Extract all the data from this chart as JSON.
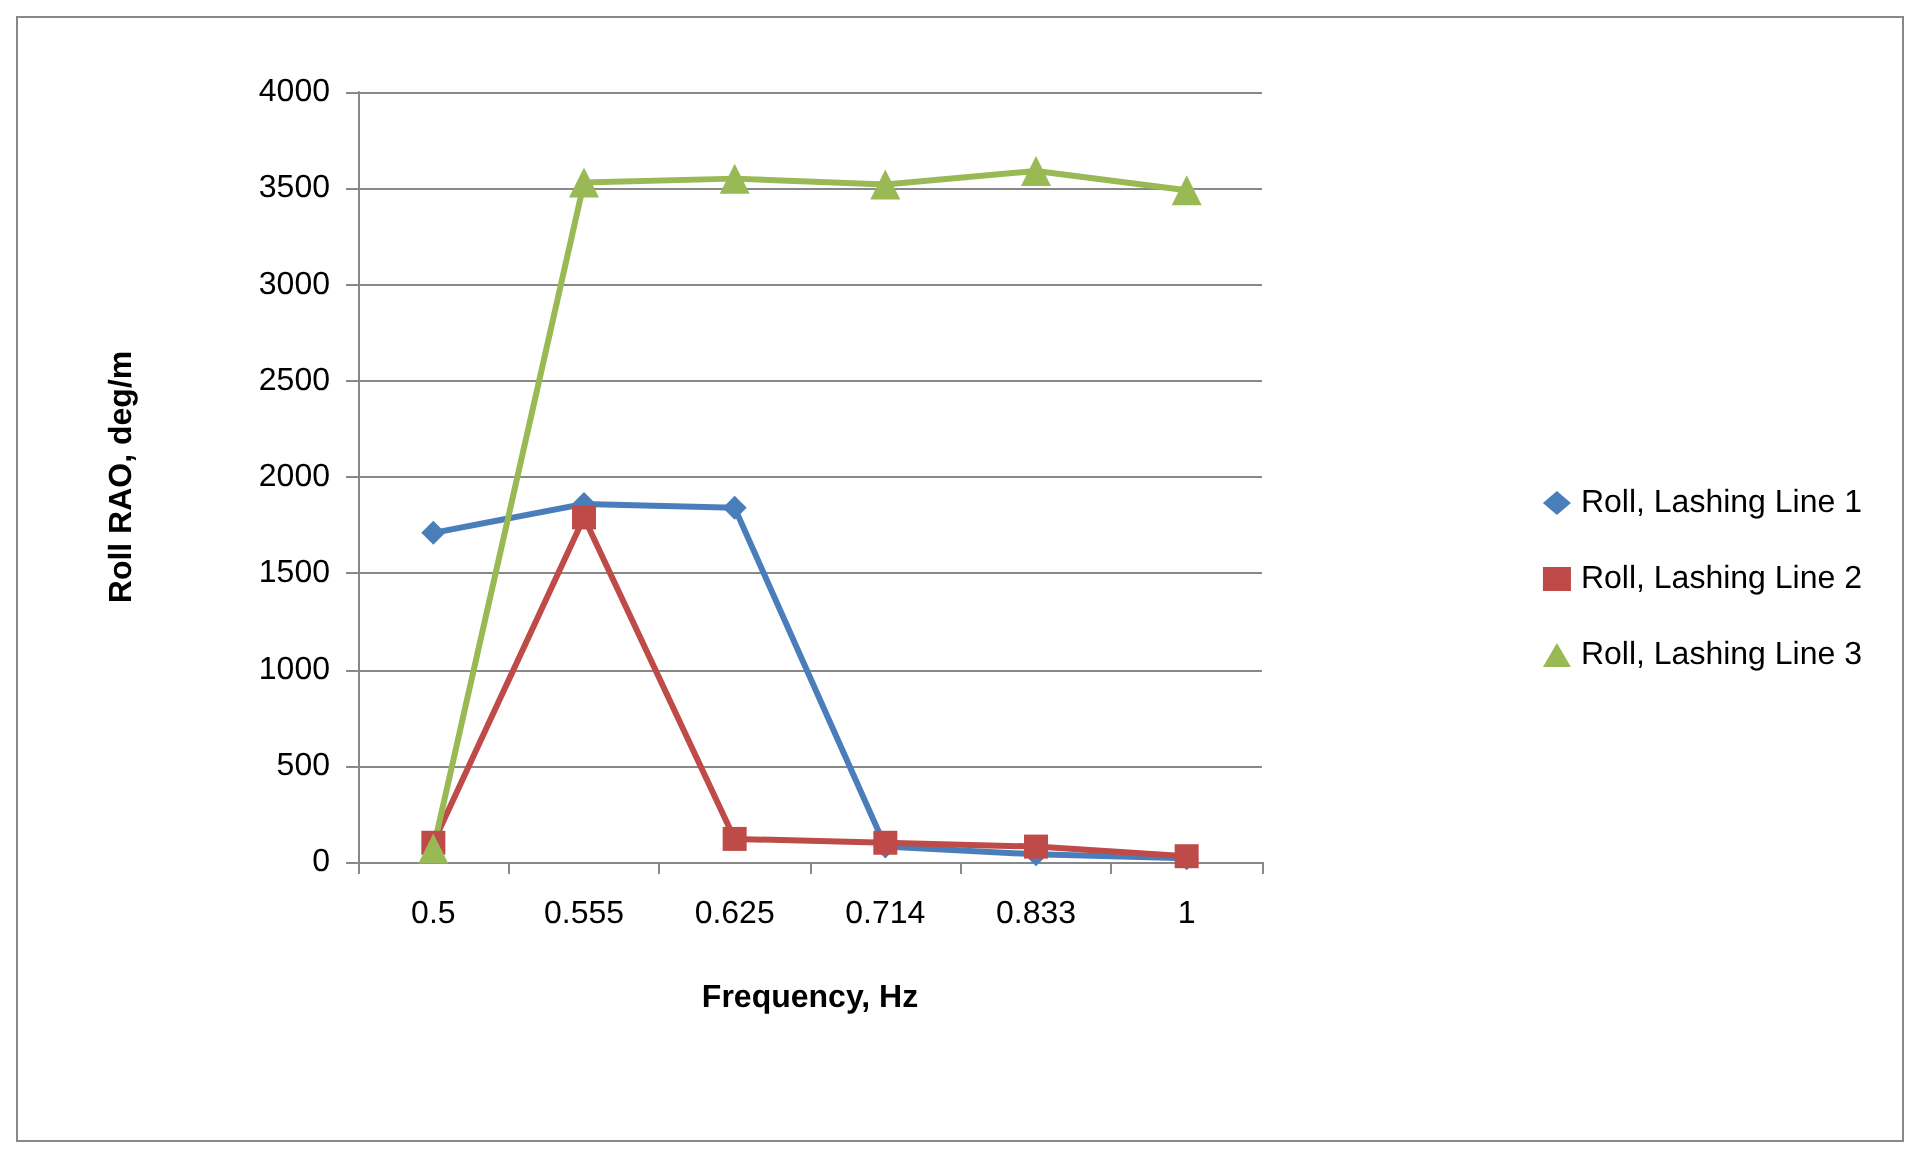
{
  "chart_data": {
    "type": "line",
    "xlabel": "Frequency, Hz",
    "ylabel": "Roll RAO, deg/m",
    "categories": [
      "0.5",
      "0.555",
      "0.625",
      "0.714",
      "0.833",
      "1"
    ],
    "series": [
      {
        "name": "Roll, Lashing Line 1",
        "color": "#4a7ebb",
        "marker": "diamond",
        "values": [
          1710,
          1860,
          1840,
          80,
          40,
          20
        ]
      },
      {
        "name": "Roll, Lashing Line 2",
        "color": "#be4b48",
        "marker": "square",
        "values": [
          100,
          1790,
          120,
          100,
          80,
          30
        ]
      },
      {
        "name": "Roll, Lashing Line 3",
        "color": "#98b954",
        "marker": "triangle",
        "values": [
          70,
          3530,
          3550,
          3520,
          3590,
          3490
        ]
      }
    ],
    "ylim": [
      0,
      4000
    ],
    "yticks": [
      0,
      500,
      1000,
      1500,
      2000,
      2500,
      3000,
      3500,
      4000
    ],
    "grid": "y",
    "legend": "right"
  }
}
